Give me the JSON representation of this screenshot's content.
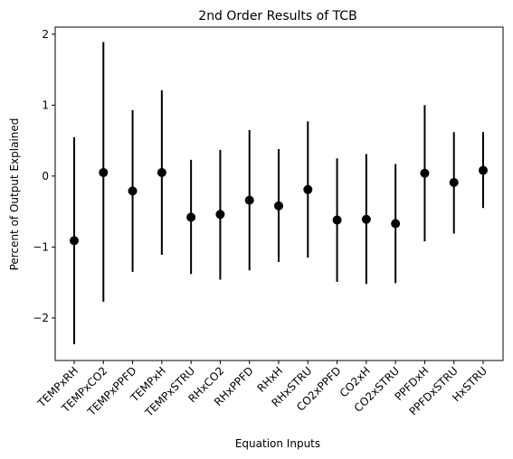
{
  "chart_data": {
    "type": "scatter",
    "title": "2nd Order Results of TCB",
    "xlabel": "Equation Inputs",
    "ylabel": "Percent of Output Explained",
    "ylim": [
      -2.6,
      2.1
    ],
    "yticks": [
      -2,
      -1,
      0,
      1,
      2
    ],
    "ytick_labels": [
      "−2",
      "−1",
      "0",
      "1",
      "2"
    ],
    "grid": false,
    "marker_color": "#000000",
    "categories": [
      "TEMPxRH",
      "TEMPxCO2",
      "TEMPxPPFD",
      "TEMPxH",
      "TEMPxSTRU",
      "RHxCO2",
      "RHxPPFD",
      "RHxH",
      "RHxSTRU",
      "CO2xPPFD",
      "CO2xH",
      "CO2xSTRU",
      "PPFDxH",
      "PPFDxSTRU",
      "HxSTRU"
    ],
    "values": [
      -0.91,
      0.05,
      -0.21,
      0.05,
      -0.58,
      -0.54,
      -0.34,
      -0.42,
      -0.19,
      -0.62,
      -0.61,
      -0.67,
      0.04,
      -0.09,
      0.08
    ],
    "lower": [
      -2.37,
      -1.77,
      -1.35,
      -1.11,
      -1.38,
      -1.46,
      -1.33,
      -1.21,
      -1.15,
      -1.49,
      -1.52,
      -1.51,
      -0.92,
      -0.81,
      -0.45
    ],
    "upper": [
      0.55,
      1.89,
      0.93,
      1.21,
      0.23,
      0.37,
      0.65,
      0.38,
      0.77,
      0.25,
      0.31,
      0.17,
      1.0,
      0.62,
      0.62
    ]
  }
}
